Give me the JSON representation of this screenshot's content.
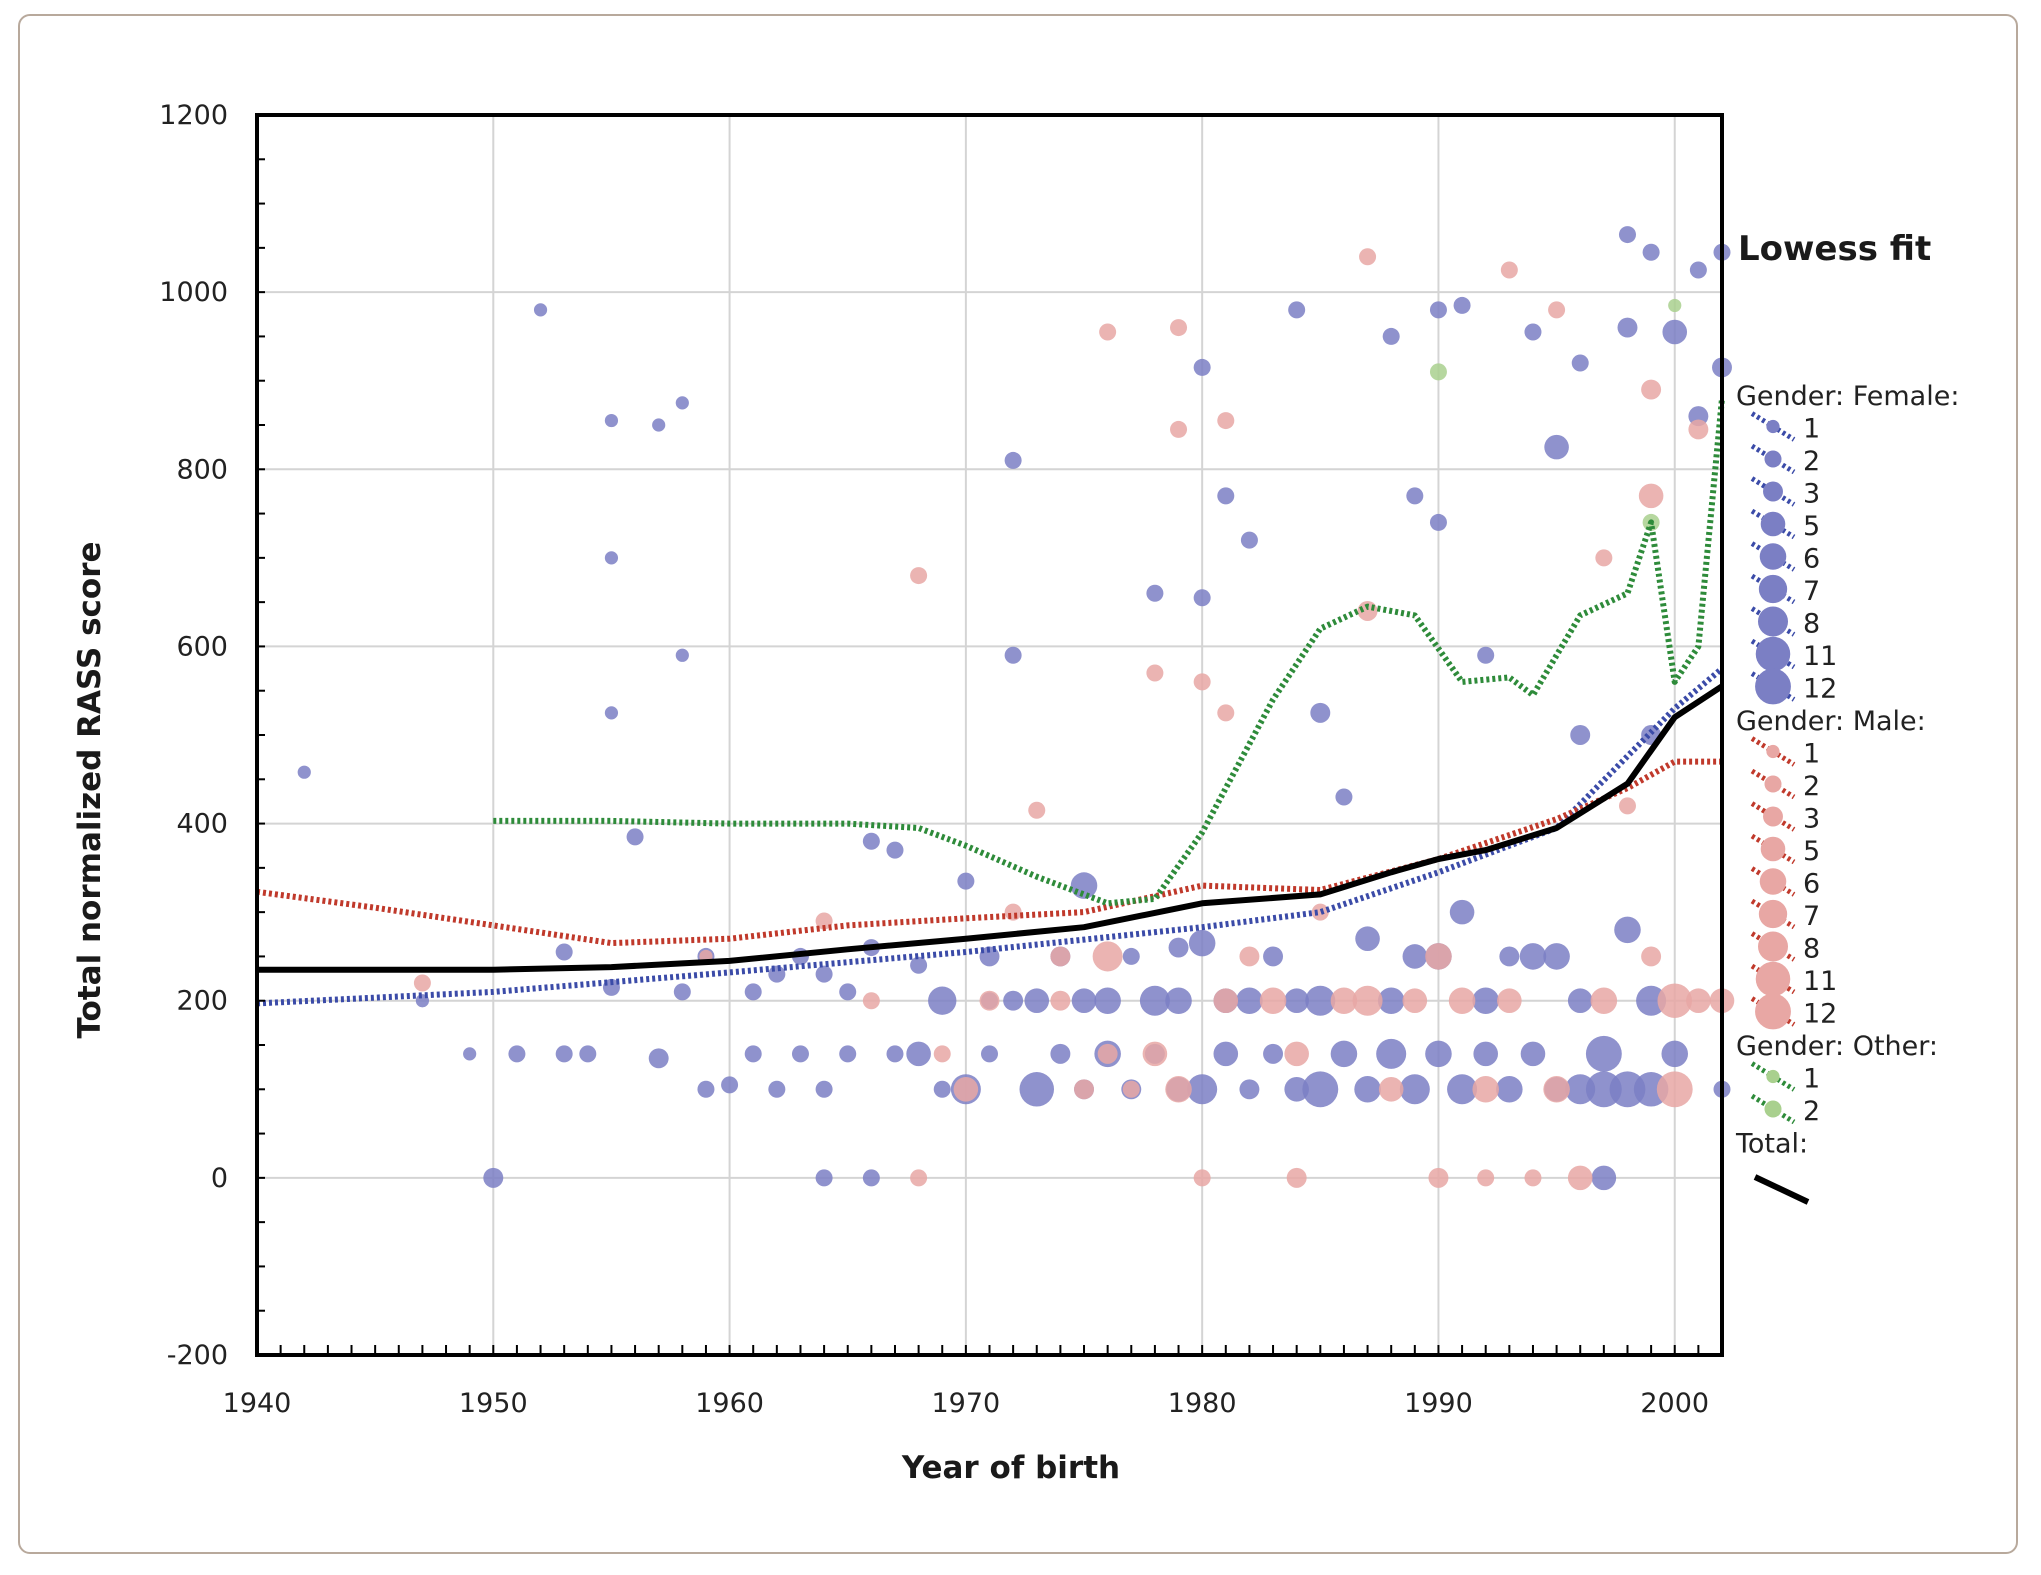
{
  "chart_data": {
    "type": "scatter",
    "title": "",
    "xlabel": "Year of birth",
    "ylabel": "Total normalized RASS score",
    "xlim": [
      1940,
      2002
    ],
    "ylim": [
      -200,
      1200
    ],
    "x_ticks": [
      "1940",
      "1950",
      "1960",
      "1970",
      "1980",
      "1990",
      "2000"
    ],
    "y_ticks": [
      "-200",
      "0",
      "200",
      "400",
      "600",
      "800",
      "1000",
      "1200"
    ],
    "grid": true,
    "legend": {
      "title": "Lowess fit",
      "placement": "right",
      "groups": [
        {
          "name": "Gender: Female:",
          "color": "#7b7fc4",
          "sizes": [
            "1",
            "2",
            "3",
            "5",
            "6",
            "7",
            "8",
            "11",
            "12"
          ]
        },
        {
          "name": "Gender: Male:",
          "color": "#e8a7a4",
          "sizes": [
            "1",
            "2",
            "3",
            "5",
            "6",
            "7",
            "8",
            "11",
            "12"
          ]
        },
        {
          "name": "Gender: Other:",
          "color": "#a9d08e",
          "sizes": [
            "1",
            "2"
          ]
        },
        {
          "name": "Total:",
          "color": "#000000",
          "sizes": []
        }
      ]
    },
    "fit_lines": [
      {
        "name": "Female",
        "style": "dotted",
        "color": "#3b4ba8",
        "x": [
          1940,
          1950,
          1960,
          1970,
          1980,
          1985,
          1990,
          1995,
          2000,
          2002
        ],
        "y": [
          197,
          210,
          232,
          255,
          283,
          300,
          345,
          395,
          530,
          575
        ]
      },
      {
        "name": "Male",
        "style": "dotted",
        "color": "#c0392b",
        "x": [
          1940,
          1945,
          1950,
          1955,
          1960,
          1965,
          1970,
          1975,
          1980,
          1985,
          1990,
          1995,
          1998,
          2000,
          2002
        ],
        "y": [
          323,
          305,
          285,
          265,
          270,
          285,
          293,
          300,
          330,
          325,
          360,
          405,
          440,
          470,
          470
        ]
      },
      {
        "name": "Other",
        "style": "dotted",
        "color": "#2e8b3a",
        "x": [
          1950,
          1955,
          1960,
          1965,
          1968,
          1970,
          1973,
          1976,
          1978,
          1980,
          1983,
          1985,
          1987,
          1989,
          1991,
          1993,
          1994,
          1996,
          1998,
          1999,
          2000,
          2001,
          2002
        ],
        "y": [
          403,
          403,
          400,
          400,
          395,
          375,
          340,
          310,
          315,
          390,
          540,
          620,
          645,
          635,
          560,
          565,
          545,
          635,
          660,
          740,
          560,
          600,
          880
        ]
      },
      {
        "name": "Total",
        "style": "solid",
        "color": "#000000",
        "x": [
          1940,
          1950,
          1955,
          1960,
          1965,
          1970,
          1975,
          1980,
          1985,
          1988,
          1990,
          1992,
          1995,
          1998,
          2000,
          2002
        ],
        "y": [
          235,
          235,
          238,
          245,
          258,
          270,
          283,
          310,
          320,
          345,
          360,
          370,
          395,
          445,
          520,
          555
        ]
      }
    ],
    "series": [
      {
        "name": "Female",
        "color": "#7b7fc4",
        "points": [
          [
            1942,
            458,
            1
          ],
          [
            1947,
            200,
            1
          ],
          [
            1949,
            140,
            1
          ],
          [
            1950,
            0,
            3
          ],
          [
            1951,
            140,
            2
          ],
          [
            1952,
            980,
            1
          ],
          [
            1953,
            255,
            2
          ],
          [
            1953,
            140,
            2
          ],
          [
            1954,
            140,
            2
          ],
          [
            1955,
            855,
            1
          ],
          [
            1955,
            700,
            1
          ],
          [
            1955,
            525,
            1
          ],
          [
            1955,
            215,
            2
          ],
          [
            1956,
            385,
            2
          ],
          [
            1957,
            850,
            1
          ],
          [
            1957,
            135,
            3
          ],
          [
            1958,
            875,
            1
          ],
          [
            1958,
            590,
            1
          ],
          [
            1958,
            210,
            2
          ],
          [
            1959,
            250,
            2
          ],
          [
            1959,
            100,
            2
          ],
          [
            1960,
            105,
            2
          ],
          [
            1961,
            210,
            2
          ],
          [
            1961,
            140,
            2
          ],
          [
            1962,
            230,
            2
          ],
          [
            1962,
            100,
            2
          ],
          [
            1963,
            250,
            2
          ],
          [
            1963,
            140,
            2
          ],
          [
            1964,
            230,
            2
          ],
          [
            1964,
            100,
            2
          ],
          [
            1964,
            0,
            2
          ],
          [
            1965,
            210,
            2
          ],
          [
            1965,
            140,
            2
          ],
          [
            1966,
            380,
            2
          ],
          [
            1966,
            260,
            2
          ],
          [
            1966,
            0,
            2
          ],
          [
            1967,
            370,
            2
          ],
          [
            1967,
            140,
            2
          ],
          [
            1968,
            240,
            2
          ],
          [
            1968,
            140,
            5
          ],
          [
            1969,
            200,
            7
          ],
          [
            1969,
            100,
            2
          ],
          [
            1970,
            335,
            2
          ],
          [
            1970,
            100,
            8
          ],
          [
            1971,
            250,
            3
          ],
          [
            1971,
            200,
            2
          ],
          [
            1971,
            140,
            2
          ],
          [
            1972,
            810,
            2
          ],
          [
            1972,
            590,
            2
          ],
          [
            1972,
            200,
            3
          ],
          [
            1973,
            200,
            5
          ],
          [
            1973,
            100,
            11
          ],
          [
            1974,
            250,
            3
          ],
          [
            1974,
            140,
            3
          ],
          [
            1975,
            330,
            6
          ],
          [
            1975,
            200,
            5
          ],
          [
            1975,
            100,
            3
          ],
          [
            1976,
            200,
            6
          ],
          [
            1976,
            140,
            6
          ],
          [
            1977,
            250,
            2
          ],
          [
            1977,
            100,
            3
          ],
          [
            1978,
            200,
            8
          ],
          [
            1978,
            140,
            3
          ],
          [
            1978,
            660,
            2
          ],
          [
            1979,
            260,
            3
          ],
          [
            1979,
            200,
            6
          ],
          [
            1979,
            100,
            5
          ],
          [
            1980,
            915,
            2
          ],
          [
            1980,
            655,
            2
          ],
          [
            1980,
            265,
            6
          ],
          [
            1980,
            100,
            8
          ],
          [
            1981,
            770,
            2
          ],
          [
            1981,
            200,
            5
          ],
          [
            1981,
            140,
            5
          ],
          [
            1982,
            720,
            2
          ],
          [
            1982,
            200,
            6
          ],
          [
            1982,
            100,
            3
          ],
          [
            1983,
            250,
            3
          ],
          [
            1983,
            140,
            3
          ],
          [
            1984,
            980,
            2
          ],
          [
            1984,
            200,
            5
          ],
          [
            1984,
            100,
            5
          ],
          [
            1985,
            525,
            3
          ],
          [
            1985,
            200,
            8
          ],
          [
            1985,
            100,
            12
          ],
          [
            1986,
            430,
            2
          ],
          [
            1986,
            140,
            6
          ],
          [
            1987,
            270,
            5
          ],
          [
            1987,
            100,
            6
          ],
          [
            1988,
            950,
            2
          ],
          [
            1988,
            200,
            6
          ],
          [
            1988,
            140,
            8
          ],
          [
            1989,
            770,
            2
          ],
          [
            1989,
            250,
            5
          ],
          [
            1989,
            100,
            8
          ],
          [
            1990,
            980,
            2
          ],
          [
            1990,
            740,
            2
          ],
          [
            1990,
            250,
            6
          ],
          [
            1990,
            140,
            6
          ],
          [
            1991,
            985,
            2
          ],
          [
            1991,
            300,
            5
          ],
          [
            1991,
            100,
            8
          ],
          [
            1992,
            590,
            2
          ],
          [
            1992,
            200,
            6
          ],
          [
            1992,
            140,
            5
          ],
          [
            1993,
            250,
            3
          ],
          [
            1993,
            100,
            6
          ],
          [
            1994,
            955,
            2
          ],
          [
            1994,
            250,
            6
          ],
          [
            1994,
            140,
            5
          ],
          [
            1995,
            825,
            5
          ],
          [
            1995,
            250,
            6
          ],
          [
            1995,
            100,
            5
          ],
          [
            1996,
            920,
            2
          ],
          [
            1996,
            500,
            3
          ],
          [
            1996,
            200,
            5
          ],
          [
            1996,
            100,
            8
          ],
          [
            1997,
            140,
            12
          ],
          [
            1997,
            100,
            12
          ],
          [
            1997,
            0,
            5
          ],
          [
            1998,
            1065,
            2
          ],
          [
            1998,
            960,
            3
          ],
          [
            1998,
            280,
            6
          ],
          [
            1998,
            100,
            12
          ],
          [
            1999,
            1045,
            2
          ],
          [
            1999,
            500,
            3
          ],
          [
            1999,
            200,
            8
          ],
          [
            1999,
            100,
            11
          ],
          [
            2000,
            955,
            5
          ],
          [
            2000,
            140,
            6
          ],
          [
            2001,
            1025,
            2
          ],
          [
            2001,
            860,
            3
          ],
          [
            2002,
            915,
            3
          ],
          [
            2002,
            1045,
            2
          ],
          [
            2002,
            100,
            2
          ]
        ]
      },
      {
        "name": "Male",
        "color": "#e8a7a4",
        "points": [
          [
            1947,
            220,
            2
          ],
          [
            1959,
            250,
            1
          ],
          [
            1964,
            290,
            2
          ],
          [
            1966,
            200,
            2
          ],
          [
            1968,
            680,
            2
          ],
          [
            1968,
            0,
            2
          ],
          [
            1969,
            140,
            2
          ],
          [
            1970,
            100,
            5
          ],
          [
            1971,
            200,
            3
          ],
          [
            1972,
            300,
            2
          ],
          [
            1973,
            415,
            2
          ],
          [
            1974,
            200,
            3
          ],
          [
            1974,
            250,
            3
          ],
          [
            1975,
            100,
            3
          ],
          [
            1976,
            955,
            2
          ],
          [
            1976,
            250,
            8
          ],
          [
            1976,
            140,
            3
          ],
          [
            1977,
            100,
            2
          ],
          [
            1978,
            570,
            2
          ],
          [
            1978,
            140,
            5
          ],
          [
            1979,
            960,
            2
          ],
          [
            1979,
            845,
            2
          ],
          [
            1979,
            100,
            6
          ],
          [
            1980,
            0,
            2
          ],
          [
            1980,
            560,
            2
          ],
          [
            1981,
            855,
            2
          ],
          [
            1981,
            525,
            2
          ],
          [
            1981,
            200,
            5
          ],
          [
            1982,
            250,
            3
          ],
          [
            1983,
            200,
            6
          ],
          [
            1984,
            0,
            3
          ],
          [
            1984,
            140,
            5
          ],
          [
            1985,
            300,
            2
          ],
          [
            1986,
            200,
            6
          ],
          [
            1987,
            1040,
            2
          ],
          [
            1987,
            640,
            3
          ],
          [
            1987,
            200,
            8
          ],
          [
            1988,
            100,
            5
          ],
          [
            1989,
            200,
            5
          ],
          [
            1990,
            0,
            3
          ],
          [
            1990,
            250,
            6
          ],
          [
            1991,
            200,
            6
          ],
          [
            1992,
            0,
            2
          ],
          [
            1992,
            100,
            6
          ],
          [
            1993,
            1025,
            2
          ],
          [
            1993,
            200,
            5
          ],
          [
            1994,
            0,
            2
          ],
          [
            1995,
            980,
            2
          ],
          [
            1995,
            100,
            6
          ],
          [
            1996,
            0,
            5
          ],
          [
            1997,
            700,
            2
          ],
          [
            1997,
            200,
            6
          ],
          [
            1998,
            420,
            2
          ],
          [
            1999,
            770,
            5
          ],
          [
            1999,
            890,
            3
          ],
          [
            1999,
            250,
            3
          ],
          [
            2000,
            200,
            11
          ],
          [
            2000,
            100,
            12
          ],
          [
            2001,
            845,
            3
          ],
          [
            2001,
            200,
            5
          ],
          [
            2002,
            200,
            5
          ]
        ]
      },
      {
        "name": "Other",
        "color": "#a9d08e",
        "points": [
          [
            1990,
            910,
            2
          ],
          [
            1999,
            740,
            2
          ],
          [
            2000,
            985,
            1
          ]
        ]
      }
    ]
  }
}
